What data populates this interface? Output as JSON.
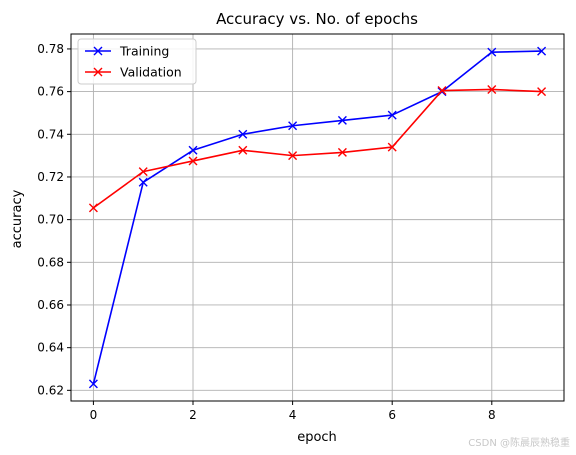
{
  "chart_data": {
    "type": "line",
    "title": "Accuracy vs. No. of epochs",
    "xlabel": "epoch",
    "ylabel": "accuracy",
    "x": [
      0,
      1,
      2,
      3,
      4,
      5,
      6,
      7,
      8,
      9
    ],
    "xlim": [
      -0.45,
      9.45
    ],
    "ylim": [
      0.615,
      0.787
    ],
    "xticks": [
      0,
      2,
      4,
      6,
      8
    ],
    "yticks": [
      0.62,
      0.64,
      0.66,
      0.68,
      0.7,
      0.72,
      0.74,
      0.76,
      0.78
    ],
    "grid": true,
    "legend_position": "top-left",
    "series": [
      {
        "name": "Training",
        "color": "#0000ff",
        "marker": "x",
        "values": [
          0.623,
          0.7175,
          0.7325,
          0.74,
          0.744,
          0.7465,
          0.749,
          0.76,
          0.7785,
          0.779
        ]
      },
      {
        "name": "Validation",
        "color": "#ff0000",
        "marker": "x",
        "values": [
          0.7055,
          0.7225,
          0.7275,
          0.7325,
          0.73,
          0.7315,
          0.734,
          0.7605,
          0.761,
          0.76
        ]
      }
    ]
  },
  "watermark": "CSDN @陈晨辰熟稳重"
}
